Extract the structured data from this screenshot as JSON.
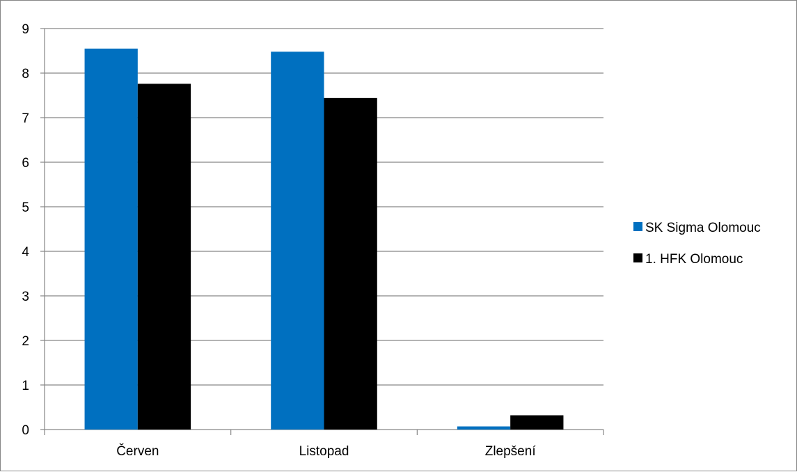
{
  "chart_data": {
    "type": "bar",
    "categories": [
      "Červen",
      "Listopad",
      "Zlepšení"
    ],
    "series": [
      {
        "name": "SK Sigma Olomouc",
        "color": "#0070C0",
        "values": [
          8.55,
          8.48,
          0.07
        ]
      },
      {
        "name": "1. HFK Olomouc",
        "color": "#000000",
        "values": [
          7.76,
          7.44,
          0.32
        ]
      }
    ],
    "ylim": [
      0,
      9
    ],
    "yticks": [
      0,
      1,
      2,
      3,
      4,
      5,
      6,
      7,
      8,
      9
    ],
    "grid": true,
    "legend_position": "right",
    "title": "",
    "xlabel": "",
    "ylabel": ""
  }
}
